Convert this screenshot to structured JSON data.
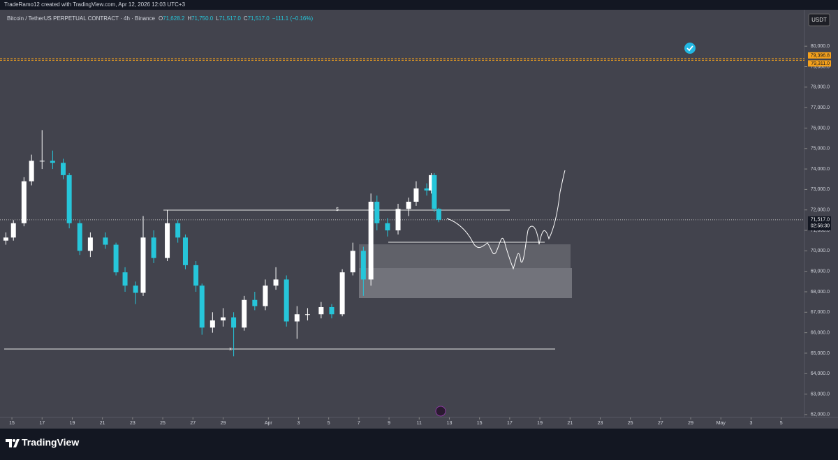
{
  "header": {
    "credit": "TradeRamo12 created with TradingView.com, Apr 12, 2026 12:03 UTC+3",
    "symbol": "Bitcoin / TetherUS PERPETUAL CONTRACT · 4h · Binance",
    "ohlc": [
      {
        "key": "O",
        "text": "71,628.2"
      },
      {
        "key": "H",
        "text": "71,750.0"
      },
      {
        "key": "L",
        "text": "71,517.0"
      },
      {
        "key": "C",
        "text": "71,517.0"
      }
    ],
    "change": "−111.1 (−0.16%)",
    "currency": "USDT"
  },
  "footer": {
    "brand": "TradingView"
  },
  "chart_data": {
    "type": "candlestick",
    "up_color": "#ffffff",
    "down_color": "#26c6da",
    "x": [
      -0.4,
      0.1,
      0.8,
      1.3,
      2.0,
      2.7,
      3.4,
      3.8,
      4.5,
      5.2,
      6.2,
      6.9,
      7.5,
      8.2,
      8.7,
      9.4,
      10.3,
      11.0,
      11.5,
      12.2,
      12.6,
      13.3,
      14.0,
      14.7,
      15.4,
      16.1,
      16.8,
      17.5,
      18.2,
      18.9,
      19.6,
      20.5,
      21.2,
      21.9,
      22.6,
      23.3,
      23.8,
      24.2,
      24.9,
      25.6,
      26.3,
      26.8,
      27.5,
      27.8,
      28.0,
      28.3
    ],
    "open": [
      70500,
      70650,
      71350,
      73400,
      74400,
      74400,
      74300,
      73700,
      71350,
      70000,
      70650,
      70300,
      68950,
      68300,
      67950,
      70650,
      69650,
      71350,
      70650,
      69300,
      68300,
      66250,
      66600,
      66750,
      66250,
      67600,
      67300,
      68300,
      68600,
      66550,
      66900,
      66900,
      67250,
      66900,
      68950,
      70000,
      68600,
      72400,
      71350,
      71000,
      72050,
      72400,
      73050,
      72950,
      73700,
      72050
    ],
    "high": [
      70900,
      71500,
      73600,
      74700,
      75900,
      74900,
      74500,
      73800,
      71500,
      70900,
      70900,
      70400,
      69200,
      68500,
      71700,
      71000,
      72000,
      71500,
      70800,
      69500,
      68400,
      67000,
      67200,
      67000,
      67800,
      68000,
      68600,
      69200,
      68800,
      67300,
      67200,
      67500,
      67400,
      69100,
      70400,
      70200,
      72800,
      72700,
      71600,
      72300,
      72600,
      73400,
      73300,
      73800,
      73800,
      72100
    ],
    "low": [
      70300,
      70500,
      71200,
      73200,
      74000,
      74000,
      73500,
      71100,
      69800,
      69700,
      70100,
      68800,
      68000,
      67400,
      67800,
      69400,
      69500,
      70400,
      69100,
      68000,
      65900,
      66000,
      66300,
      64850,
      66100,
      67100,
      67100,
      68100,
      66300,
      65700,
      66600,
      66700,
      66700,
      66800,
      68800,
      67800,
      68300,
      71000,
      70700,
      70800,
      71700,
      72200,
      72700,
      72800,
      71900,
      71400
    ],
    "close": [
      70650,
      71350,
      73400,
      74400,
      74400,
      74300,
      73700,
      71350,
      70000,
      70650,
      70300,
      68950,
      68300,
      67950,
      70650,
      69650,
      71350,
      70650,
      69300,
      68300,
      66250,
      66600,
      66750,
      66250,
      67600,
      67300,
      68300,
      68600,
      66550,
      66900,
      66900,
      67250,
      66900,
      68950,
      70000,
      68600,
      72400,
      71350,
      71000,
      72050,
      72400,
      73050,
      72950,
      73700,
      72050,
      71517
    ],
    "xlim": [
      -0.79,
      52.45
    ],
    "xticks": [
      {
        "value": 0,
        "label": "15"
      },
      {
        "value": 2,
        "label": "17"
      },
      {
        "value": 4,
        "label": "19"
      },
      {
        "value": 6,
        "label": "21"
      },
      {
        "value": 8,
        "label": "23"
      },
      {
        "value": 10,
        "label": "25"
      },
      {
        "value": 12,
        "label": "27"
      },
      {
        "value": 14,
        "label": "29"
      },
      {
        "value": 17,
        "label": "Apr"
      },
      {
        "value": 19,
        "label": "3"
      },
      {
        "value": 21,
        "label": "5"
      },
      {
        "value": 23,
        "label": "7"
      },
      {
        "value": 25,
        "label": "9"
      },
      {
        "value": 27,
        "label": "11"
      },
      {
        "value": 29,
        "label": "13"
      },
      {
        "value": 31,
        "label": "15"
      },
      {
        "value": 33,
        "label": "17"
      },
      {
        "value": 35,
        "label": "19"
      },
      {
        "value": 37,
        "label": "21"
      },
      {
        "value": 39,
        "label": "23"
      },
      {
        "value": 41,
        "label": "25"
      },
      {
        "value": 43,
        "label": "27"
      },
      {
        "value": 45,
        "label": "29"
      },
      {
        "value": 47,
        "label": "May"
      },
      {
        "value": 49,
        "label": "3"
      },
      {
        "value": 51,
        "label": "5"
      }
    ],
    "ylim": [
      61860,
      81780
    ],
    "yticks": [
      {
        "value": 62000,
        "label": "62,000.0"
      },
      {
        "value": 63000,
        "label": "63,000.0"
      },
      {
        "value": 64000,
        "label": "64,000.0"
      },
      {
        "value": 65000,
        "label": "65,000.0"
      },
      {
        "value": 66000,
        "label": "66,000.0"
      },
      {
        "value": 67000,
        "label": "67,000.0"
      },
      {
        "value": 68000,
        "label": "68,000.0"
      },
      {
        "value": 69000,
        "label": "69,000.0"
      },
      {
        "value": 70000,
        "label": "70,000.0"
      },
      {
        "value": 71000,
        "label": "71,000.0"
      },
      {
        "value": 72000,
        "label": "72,000.0"
      },
      {
        "value": 73000,
        "label": "73,000.0"
      },
      {
        "value": 74000,
        "label": "74,000.0"
      },
      {
        "value": 75000,
        "label": "75,000.0"
      },
      {
        "value": 76000,
        "label": "76,000.0"
      },
      {
        "value": 77000,
        "label": "77,000.0"
      },
      {
        "value": 78000,
        "label": "78,000.0"
      },
      {
        "value": 79000,
        "label": "79,000.0"
      },
      {
        "value": 80000,
        "label": "80,000.0"
      }
    ],
    "price_lines": [
      {
        "value": 79396.8,
        "label": "79,396.8",
        "color": "#f7a21b"
      },
      {
        "value": 79311.0,
        "label": "79,311.0",
        "color": "#f7a21b"
      }
    ],
    "last_price": {
      "value": 71517.0,
      "label": "71,517.0",
      "countdown": "02:56:30"
    },
    "annotations": [
      "$",
      "x"
    ]
  }
}
